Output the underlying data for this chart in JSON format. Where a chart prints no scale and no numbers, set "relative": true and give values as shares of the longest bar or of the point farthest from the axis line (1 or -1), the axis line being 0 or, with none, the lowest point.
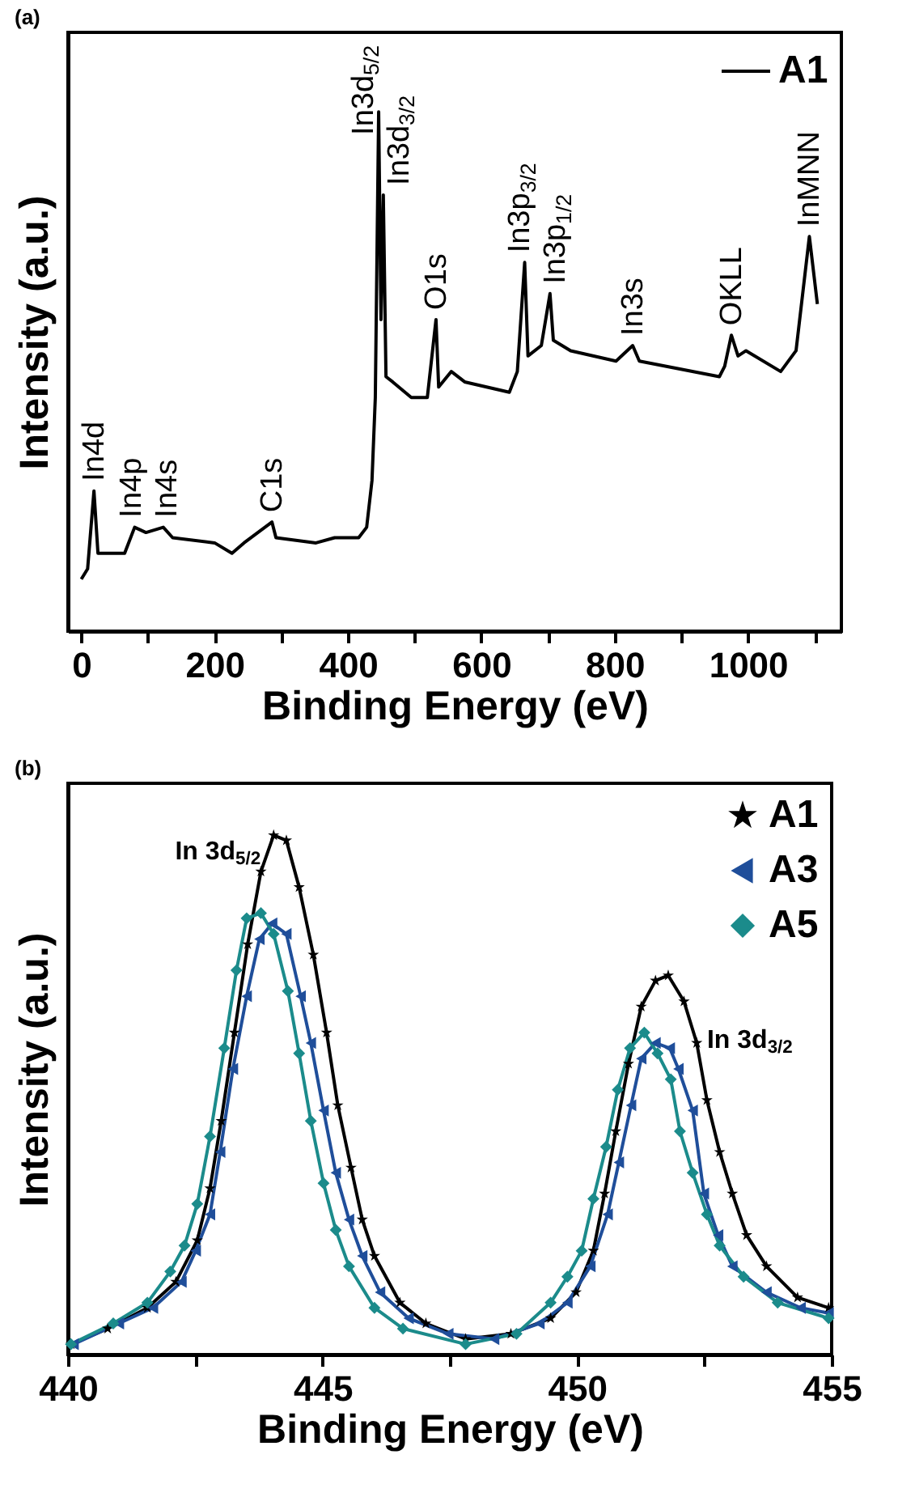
{
  "chart_data": [
    {
      "type": "line",
      "title": "(a)",
      "xlabel": "Binding Energy (eV)",
      "ylabel": "Intensity (a.u.)",
      "relative": true,
      "xlim": [
        -20,
        1140
      ],
      "xticks": [
        0,
        {
          "value": 100,
          "label": null
        },
        200,
        {
          "value": 300,
          "label": null
        },
        400,
        {
          "value": 500,
          "label": null
        },
        600,
        {
          "value": 700,
          "label": null
        },
        800,
        {
          "value": 900,
          "label": null
        },
        1000,
        {
          "value": 1100,
          "label": null
        }
      ],
      "tick_labels": "x",
      "grid": false,
      "legend": "top right",
      "line_style": "solid",
      "series": [
        {
          "name": "A1",
          "color": "#000000",
          "marker": "none",
          "x": [
            0,
            9.5,
            19,
            25,
            45,
            65,
            80,
            97,
            123,
            137,
            200,
            226,
            244,
            286,
            292,
            352,
            380,
            416,
            428,
            436,
            441,
            446,
            449.5,
            453,
            457,
            467,
            495,
            519,
            532,
            536,
            555,
            575,
            642,
            654,
            665,
            670,
            690,
            703,
            708,
            734,
            802,
            827,
            837,
            957,
            965,
            975,
            985,
            997,
            1049,
            1072,
            1092,
            1104
          ],
          "values": [
            0.1,
            0.12,
            0.27,
            0.15,
            0.15,
            0.15,
            0.2,
            0.19,
            0.2,
            0.18,
            0.17,
            0.15,
            0.17,
            0.21,
            0.18,
            0.17,
            0.18,
            0.18,
            0.2,
            0.29,
            0.45,
            1.0,
            0.6,
            0.84,
            0.49,
            0.48,
            0.45,
            0.45,
            0.6,
            0.47,
            0.5,
            0.48,
            0.46,
            0.5,
            0.71,
            0.53,
            0.55,
            0.65,
            0.56,
            0.54,
            0.52,
            0.55,
            0.52,
            0.49,
            0.51,
            0.57,
            0.53,
            0.54,
            0.5,
            0.54,
            0.76,
            0.63
          ]
        }
      ],
      "annotations": [
        {
          "text": "In4d",
          "x": 19,
          "y": 0.27
        },
        {
          "text": "In4p",
          "x": 80,
          "y": 0.2
        },
        {
          "text": "In4s",
          "x": 123,
          "y": 0.2
        },
        {
          "text": "C1s",
          "x": 286,
          "y": 0.21
        },
        {
          "text": "In3d$_{5/2}$",
          "x": 446,
          "y": 1.0
        },
        {
          "text": "In3d$_{3/2}$",
          "x": 453,
          "y": 0.84
        },
        {
          "text": "O1s",
          "x": 532,
          "y": 0.6
        },
        {
          "text": "In3p$_{3/2}$",
          "x": 665,
          "y": 0.71
        },
        {
          "text": "In3p$_{1/2}$",
          "x": 703,
          "y": 0.65
        },
        {
          "text": "In3s",
          "x": 827,
          "y": 0.55
        },
        {
          "text": "OKLL",
          "x": 975,
          "y": 0.57
        },
        {
          "text": "InMNN",
          "x": 1092,
          "y": 0.76
        }
      ]
    },
    {
      "type": "line",
      "title": "(b)",
      "xlabel": "Binding Energy (eV)",
      "ylabel": "Intensity (a.u.)",
      "relative": true,
      "xlim": [
        440,
        455
      ],
      "xticks": [
        440,
        {
          "value": 442.5,
          "label": null
        },
        445,
        {
          "value": 447.5,
          "label": null
        },
        450,
        {
          "value": 452.5,
          "label": null
        },
        455
      ],
      "tick_labels": "x",
      "grid": false,
      "legend": "top right",
      "line_style": "solid",
      "series": [
        {
          "name": "A1",
          "color": "#000000",
          "marker": "star",
          "x": [
            440.06,
            440.78,
            441.56,
            442.12,
            442.54,
            442.79,
            443.01,
            443.27,
            443.53,
            443.79,
            444.04,
            444.29,
            444.54,
            444.82,
            445.08,
            445.3,
            445.56,
            445.78,
            446.02,
            446.52,
            447.03,
            447.81,
            448.7,
            449.48,
            449.98,
            450.32,
            450.54,
            450.76,
            451.01,
            451.26,
            451.54,
            451.79,
            452.1,
            452.35,
            452.55,
            452.8,
            453.05,
            453.33,
            453.72,
            454.33,
            454.94
          ],
          "values": [
            0.02,
            0.05,
            0.09,
            0.14,
            0.22,
            0.32,
            0.45,
            0.62,
            0.79,
            0.93,
            1.0,
            0.99,
            0.9,
            0.77,
            0.62,
            0.48,
            0.36,
            0.26,
            0.19,
            0.1,
            0.06,
            0.03,
            0.04,
            0.07,
            0.12,
            0.2,
            0.31,
            0.43,
            0.56,
            0.67,
            0.72,
            0.73,
            0.68,
            0.6,
            0.49,
            0.39,
            0.31,
            0.23,
            0.17,
            0.11,
            0.09
          ]
        },
        {
          "name": "A3",
          "color": "#1f4e9a",
          "marker": "triangle",
          "x": [
            440.11,
            441.0,
            441.67,
            442.23,
            442.51,
            442.79,
            442.99,
            443.24,
            443.51,
            443.76,
            444.01,
            444.29,
            444.57,
            444.77,
            445.02,
            445.26,
            445.52,
            445.78,
            446.13,
            446.69,
            447.47,
            448.37,
            449.26,
            449.81,
            450.26,
            450.6,
            450.82,
            451.06,
            451.26,
            451.54,
            451.82,
            451.99,
            452.27,
            452.49,
            452.77,
            453.05,
            453.72,
            454.39,
            454.94
          ],
          "values": [
            0.02,
            0.06,
            0.09,
            0.14,
            0.2,
            0.27,
            0.39,
            0.55,
            0.69,
            0.8,
            0.83,
            0.81,
            0.69,
            0.6,
            0.47,
            0.35,
            0.26,
            0.19,
            0.12,
            0.07,
            0.04,
            0.03,
            0.06,
            0.1,
            0.17,
            0.27,
            0.37,
            0.48,
            0.57,
            0.6,
            0.59,
            0.55,
            0.47,
            0.31,
            0.23,
            0.17,
            0.12,
            0.09,
            0.08
          ]
        },
        {
          "name": "A5",
          "color": "#1b8b8b",
          "marker": "diamond",
          "x": [
            440.06,
            440.89,
            441.56,
            442.01,
            442.29,
            442.54,
            442.79,
            443.07,
            443.31,
            443.51,
            443.79,
            444.04,
            444.32,
            444.54,
            444.77,
            445.02,
            445.26,
            445.52,
            446.02,
            446.58,
            447.81,
            448.81,
            449.48,
            449.81,
            450.09,
            450.32,
            450.57,
            450.8,
            451.04,
            451.32,
            451.58,
            451.84,
            452.02,
            452.27,
            452.55,
            452.8,
            453.27,
            453.94,
            454.94
          ],
          "values": [
            0.02,
            0.06,
            0.1,
            0.16,
            0.21,
            0.29,
            0.42,
            0.59,
            0.74,
            0.84,
            0.85,
            0.81,
            0.7,
            0.58,
            0.45,
            0.33,
            0.24,
            0.17,
            0.09,
            0.05,
            0.02,
            0.04,
            0.1,
            0.15,
            0.2,
            0.3,
            0.4,
            0.51,
            0.59,
            0.62,
            0.58,
            0.53,
            0.43,
            0.35,
            0.27,
            0.21,
            0.15,
            0.1,
            0.07
          ]
        }
      ],
      "annotations": [
        {
          "text": "In 3d$_{5/2}$",
          "x": 444.04,
          "y": 1.0
        },
        {
          "text": "In 3d$_{3/2}$",
          "x": 451.79,
          "y": 0.73
        }
      ]
    }
  ]
}
